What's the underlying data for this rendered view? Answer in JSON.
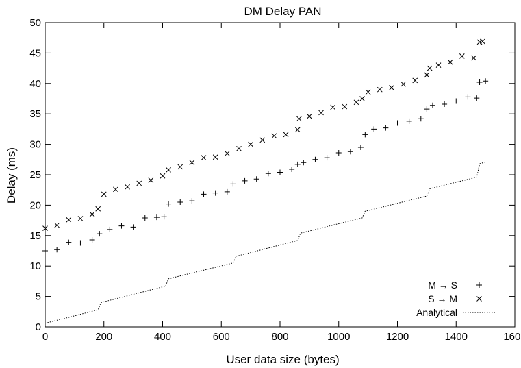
{
  "chart_data": {
    "type": "scatter",
    "title": "DM Delay PAN",
    "xlabel": "User data size (bytes)",
    "ylabel": "Delay (ms)",
    "xlim": [
      0,
      1600
    ],
    "ylim": [
      0,
      50
    ],
    "xticks": [
      "0",
      "200",
      "400",
      "600",
      "800",
      "1000",
      "1200",
      "1400",
      "1600"
    ],
    "yticks": [
      "0",
      "5",
      "10",
      "15",
      "20",
      "25",
      "30",
      "35",
      "40",
      "45",
      "50"
    ],
    "grid": false,
    "legend_position": "bottom-right",
    "series": [
      {
        "name": "M → S",
        "marker": "plus",
        "x": [
          0,
          40,
          80,
          120,
          160,
          185,
          220,
          260,
          300,
          340,
          380,
          405,
          420,
          460,
          500,
          540,
          580,
          620,
          640,
          680,
          720,
          760,
          800,
          840,
          860,
          880,
          920,
          960,
          1000,
          1040,
          1075,
          1090,
          1120,
          1160,
          1200,
          1240,
          1280,
          1300,
          1320,
          1360,
          1400,
          1440,
          1470,
          1480,
          1500
        ],
        "y": [
          12.5,
          12.7,
          13.9,
          13.8,
          14.3,
          15.3,
          16.0,
          16.6,
          16.4,
          17.9,
          18.0,
          18.1,
          20.2,
          20.5,
          20.7,
          21.8,
          22.0,
          22.2,
          23.5,
          24.0,
          24.3,
          25.2,
          25.4,
          25.9,
          26.7,
          27.0,
          27.5,
          27.8,
          28.6,
          28.8,
          29.5,
          31.6,
          32.5,
          32.7,
          33.5,
          33.8,
          34.2,
          35.8,
          36.4,
          36.6,
          37.1,
          37.8,
          37.6,
          40.2,
          40.4
        ]
      },
      {
        "name": "S → M",
        "marker": "cross",
        "x": [
          0,
          40,
          80,
          120,
          160,
          180,
          200,
          240,
          280,
          320,
          360,
          400,
          420,
          460,
          500,
          540,
          580,
          620,
          660,
          700,
          740,
          780,
          820,
          860,
          865,
          900,
          940,
          980,
          1020,
          1060,
          1080,
          1100,
          1140,
          1180,
          1220,
          1260,
          1300,
          1310,
          1340,
          1380,
          1420,
          1460,
          1480,
          1490
        ],
        "y": [
          16.2,
          16.7,
          17.6,
          17.8,
          18.5,
          19.4,
          21.8,
          22.6,
          23.0,
          23.6,
          24.1,
          24.8,
          25.8,
          26.3,
          27.0,
          27.8,
          27.9,
          28.5,
          29.3,
          30.0,
          30.7,
          31.4,
          31.6,
          32.4,
          34.2,
          34.6,
          35.2,
          36.1,
          36.2,
          36.9,
          37.5,
          38.6,
          39.0,
          39.3,
          39.9,
          40.5,
          41.4,
          42.5,
          43.0,
          43.5,
          44.5,
          44.2,
          46.8,
          46.9
        ]
      },
      {
        "name": "Analytical",
        "line_style": "dotted",
        "x": [
          0,
          180,
          190,
          410,
          420,
          640,
          650,
          860,
          870,
          1080,
          1090,
          1300,
          1310,
          1470,
          1480,
          1500
        ],
        "y": [
          0.6,
          2.8,
          4.0,
          6.7,
          7.9,
          10.5,
          11.6,
          14.2,
          15.4,
          17.9,
          19.0,
          21.5,
          22.7,
          24.6,
          26.8,
          27.1
        ]
      }
    ]
  }
}
